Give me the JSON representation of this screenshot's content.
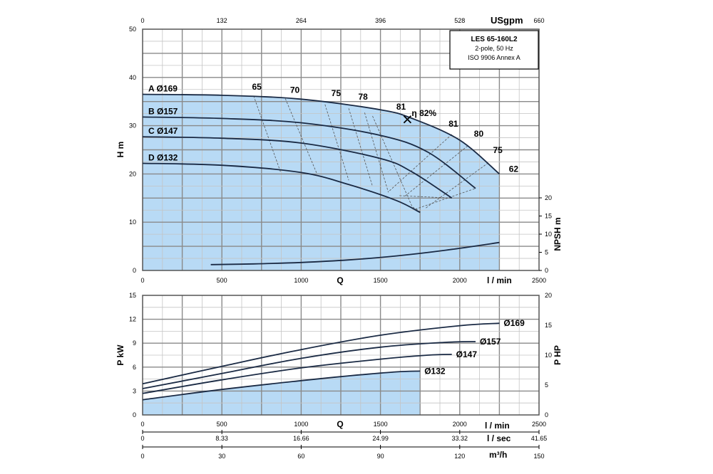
{
  "chart_data": [
    {
      "type": "line",
      "panel": "head",
      "info_box": [
        "LES 65-160L2",
        "2-pole, 50 Hz",
        "ISO 9906 Annex A"
      ],
      "x_axis": {
        "unit": "l / min",
        "label": "Q",
        "range": [
          0,
          2500
        ],
        "ticks": [
          "0",
          "500",
          "1000",
          "1500",
          "2000",
          "2500"
        ]
      },
      "x_top_axis": {
        "unit": "USgpm",
        "range": [
          0,
          660
        ],
        "ticks": [
          "0",
          "132",
          "264",
          "396",
          "528",
          "660"
        ]
      },
      "y_axis": {
        "label": "H m",
        "range": [
          0,
          50
        ],
        "ticks": [
          "0",
          "10",
          "20",
          "30",
          "40",
          "50"
        ]
      },
      "y_right_axis": {
        "label": "NPSH m",
        "range": [
          0,
          20
        ],
        "ticks": [
          "0",
          "5",
          "10",
          "15",
          "20"
        ]
      },
      "grid": true,
      "series": [
        {
          "name": "A Ø169",
          "x": [
            0,
            500,
            1000,
            1500,
            1700,
            2000,
            2250
          ],
          "y": [
            36.5,
            36.3,
            35.5,
            33.3,
            31.5,
            27.0,
            20.0
          ]
        },
        {
          "name": "B Ø157",
          "x": [
            0,
            500,
            1000,
            1500,
            1800,
            2100
          ],
          "y": [
            31.8,
            31.5,
            30.6,
            28.0,
            24.5,
            17.0
          ]
        },
        {
          "name": "C Ø147",
          "x": [
            0,
            500,
            1000,
            1500,
            1700,
            1950
          ],
          "y": [
            27.7,
            27.4,
            26.4,
            23.2,
            20.4,
            15.0
          ]
        },
        {
          "name": "D Ø132",
          "x": [
            0,
            500,
            1000,
            1300,
            1600,
            1750
          ],
          "y": [
            22.2,
            21.8,
            20.3,
            17.8,
            14.5,
            12.0
          ]
        }
      ],
      "npsh_curve": {
        "x": [
          430,
          700,
          1000,
          1300,
          1600,
          1900,
          2250
        ],
        "y": [
          1.6,
          1.8,
          2.2,
          2.9,
          4.0,
          5.5,
          7.7
        ]
      },
      "efficiency_labels": [
        {
          "text": "65",
          "x": 720,
          "y": 37.5
        },
        {
          "text": "70",
          "x": 960,
          "y": 36.8
        },
        {
          "text": "75",
          "x": 1220,
          "y": 36.1
        },
        {
          "text": "78",
          "x": 1390,
          "y": 35.4
        },
        {
          "text": "81",
          "x": 1630,
          "y": 33.3
        },
        {
          "text": "η 82%",
          "x": 1775,
          "y": 32.0
        },
        {
          "text": "81",
          "x": 1960,
          "y": 29.8
        },
        {
          "text": "80",
          "x": 2120,
          "y": 27.7
        },
        {
          "text": "75",
          "x": 2240,
          "y": 24.3
        },
        {
          "text": "62",
          "x": 2340,
          "y": 20.4
        }
      ],
      "bep": {
        "x": 1670,
        "y": 31.3
      }
    },
    {
      "type": "line",
      "panel": "power",
      "x_axis": {
        "label": "Q",
        "range": [
          0,
          2500
        ],
        "ticks_lmin": [
          "0",
          "500",
          "1000",
          "1500",
          "2000",
          "2500"
        ],
        "ticks_lsec": [
          "0",
          "8.33",
          "16.66",
          "24.99",
          "33.32",
          "41.65"
        ],
        "ticks_m3h": [
          "0",
          "30",
          "60",
          "90",
          "120",
          "150"
        ],
        "unit_lmin": "l / min",
        "unit_lsec": "l / sec",
        "unit_m3h": "m³/h"
      },
      "y_axis": {
        "label": "P kW",
        "range": [
          0,
          15
        ],
        "ticks": [
          "0",
          "3",
          "6",
          "9",
          "12",
          "15"
        ]
      },
      "y_right_axis": {
        "label": "P HP",
        "range": [
          0,
          20
        ],
        "ticks": [
          "0",
          "5",
          "10",
          "15",
          "20"
        ]
      },
      "grid": true,
      "series": [
        {
          "name": "Ø169",
          "x": [
            0,
            500,
            1000,
            1500,
            2000,
            2250
          ],
          "y": [
            3.9,
            6.1,
            8.2,
            10.0,
            11.2,
            11.5
          ]
        },
        {
          "name": "Ø157",
          "x": [
            0,
            500,
            1000,
            1500,
            1900,
            2100
          ],
          "y": [
            3.3,
            5.2,
            7.1,
            8.5,
            9.1,
            9.2
          ]
        },
        {
          "name": "Ø147",
          "x": [
            0,
            500,
            1000,
            1500,
            1800,
            1950
          ],
          "y": [
            2.7,
            4.4,
            5.9,
            7.0,
            7.5,
            7.6
          ]
        },
        {
          "name": "Ø132",
          "x": [
            0,
            500,
            1000,
            1300,
            1600,
            1750
          ],
          "y": [
            1.9,
            3.2,
            4.3,
            4.9,
            5.4,
            5.5
          ]
        }
      ]
    }
  ],
  "colors": {
    "fill": "#b8daf5",
    "grid_major": "#8a8a8a",
    "grid_minor": "#c4c4c4",
    "curve": "#1a2a44"
  }
}
